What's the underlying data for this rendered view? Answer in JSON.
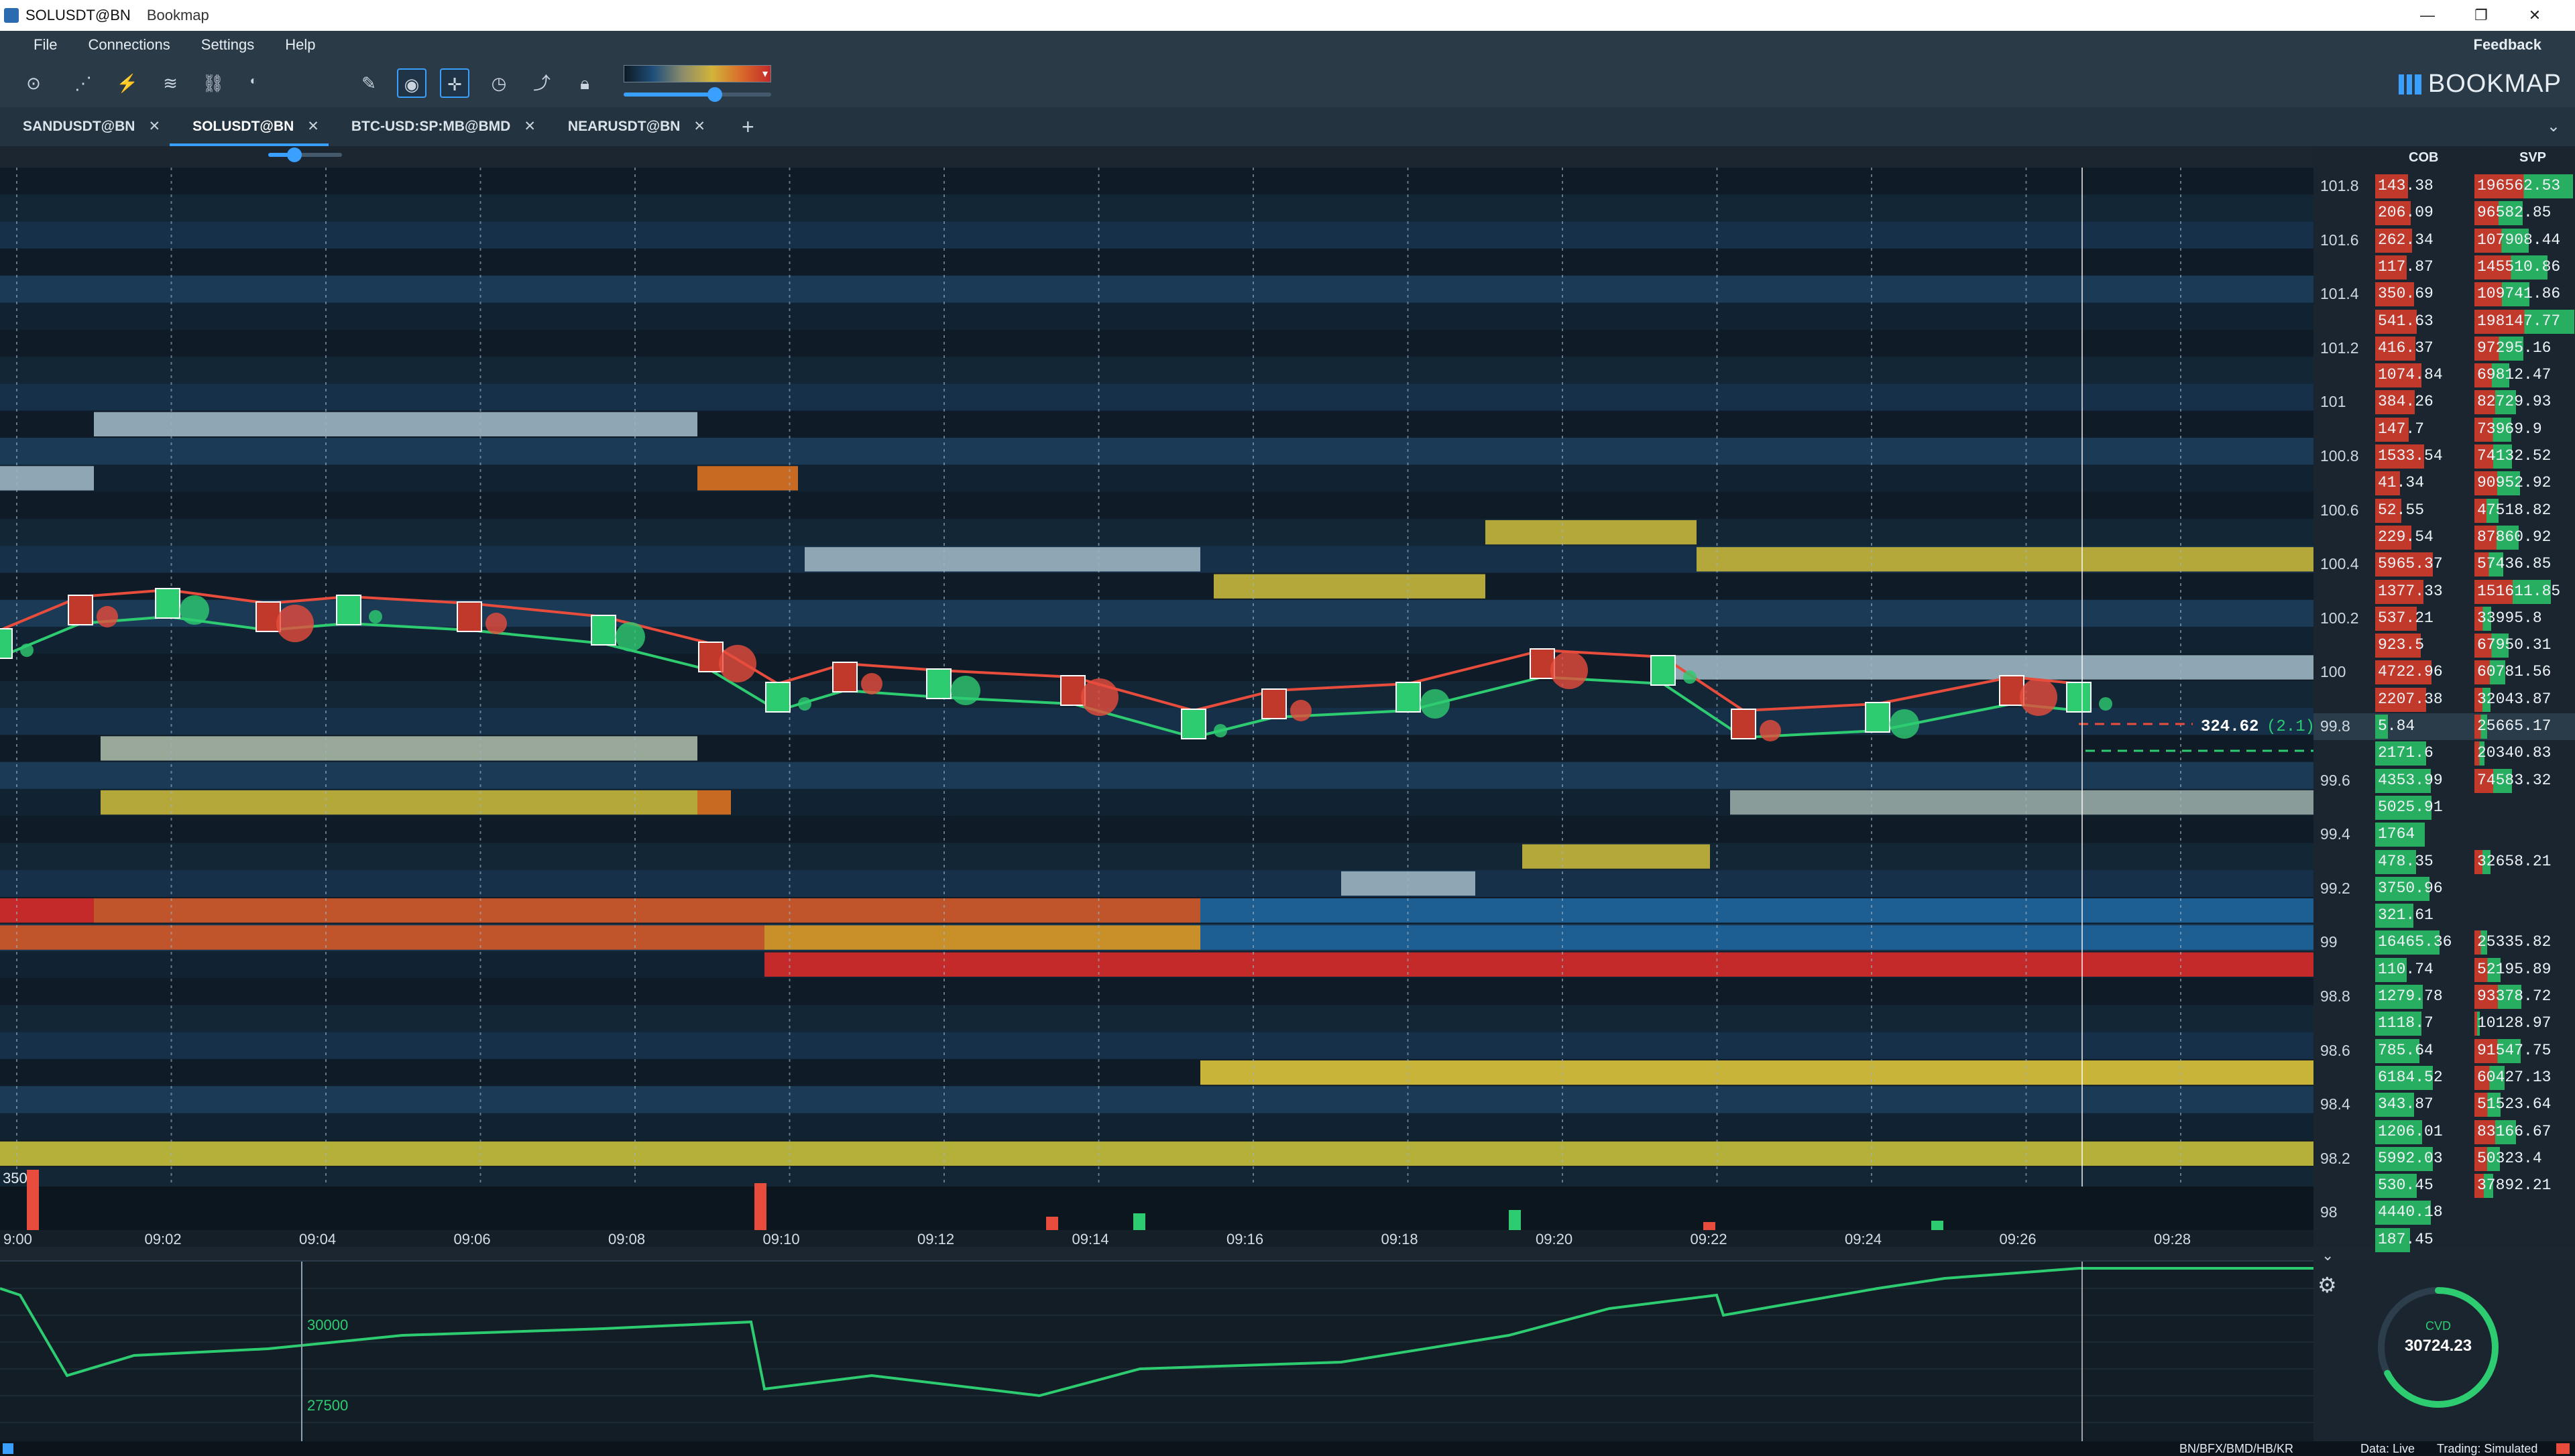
{
  "window": {
    "title": "SOLUSDT@BN",
    "app_name": "Bookmap",
    "controls": [
      "—",
      "❐",
      "✕"
    ]
  },
  "menu": {
    "items": [
      "File",
      "Connections",
      "Settings",
      "Help"
    ],
    "feedback": "Feedback"
  },
  "brand": {
    "name": "BOOKMAP"
  },
  "toolbar": {
    "icons": [
      "camera-icon",
      "share-icon",
      "chart-settings-icon",
      "indicators-icon",
      "link-icon",
      "contrast-icon",
      "pencil-icon",
      "chat-icon",
      "crosshair-icon",
      "timer-icon",
      "chart-line-icon",
      "lock-icon"
    ],
    "slider1_value": 0.45,
    "slider2_value": 0.35,
    "heatmap_slider_value": 0.62
  },
  "tabs": [
    {
      "label": "SANDUSDT@BN",
      "active": false
    },
    {
      "label": "SOLUSDT@BN",
      "active": true
    },
    {
      "label": "BTC-USD:SP:MB@BMD",
      "active": false
    },
    {
      "label": "NEARUSDT@BN",
      "active": false
    }
  ],
  "chart": {
    "last_trade_label": "324.62",
    "last_trade_sub": "(2.1)",
    "volume_max_label": "3500",
    "time_labels": [
      "9:00",
      "09:02",
      "09:04",
      "09:06",
      "09:08",
      "09:10",
      "09:12",
      "09:14",
      "09:16",
      "09:18",
      "09:20",
      "09:22",
      "09:24",
      "09:26",
      "09:28"
    ],
    "cvd_axis_labels": [
      "30000",
      "27500"
    ]
  },
  "columns": {
    "cob": "COB",
    "svp": "SVP"
  },
  "ladder": [
    {
      "price": "101.8",
      "cob": "143.38",
      "svp": "196562.53"
    },
    {
      "price": "",
      "cob": "206.09",
      "svp": "96582.85"
    },
    {
      "price": "101.6",
      "cob": "262.34",
      "svp": "107908.44"
    },
    {
      "price": "",
      "cob": "117.87",
      "svp": "145510.86"
    },
    {
      "price": "101.4",
      "cob": "350.69",
      "svp": "109741.86"
    },
    {
      "price": "",
      "cob": "541.63",
      "svp": "198147.77"
    },
    {
      "price": "101.2",
      "cob": "416.37",
      "svp": "97295.16"
    },
    {
      "price": "",
      "cob": "1074.84",
      "svp": "69812.47"
    },
    {
      "price": "101",
      "cob": "384.26",
      "svp": "82729.93"
    },
    {
      "price": "",
      "cob": "147.7",
      "svp": "73969.9"
    },
    {
      "price": "100.8",
      "cob": "1533.54",
      "svp": "74132.52"
    },
    {
      "price": "",
      "cob": "41.34",
      "svp": "90952.92"
    },
    {
      "price": "100.6",
      "cob": "52.55",
      "svp": "47518.82"
    },
    {
      "price": "",
      "cob": "229.54",
      "svp": "87860.92"
    },
    {
      "price": "100.4",
      "cob": "5965.37",
      "svp": "57436.85"
    },
    {
      "price": "",
      "cob": "1377.33",
      "svp": "151611.85"
    },
    {
      "price": "100.2",
      "cob": "537.21",
      "svp": "33995.8"
    },
    {
      "price": "",
      "cob": "923.5",
      "svp": "67950.31"
    },
    {
      "price": "100",
      "cob": "4722.96",
      "svp": "60781.56"
    },
    {
      "price": "",
      "cob": "2207.38",
      "svp": "32043.87"
    },
    {
      "price": "99.8",
      "cob": "5.84",
      "svp": "25665.17"
    },
    {
      "price": "",
      "cob": "2171.6",
      "svp": "20340.83"
    },
    {
      "price": "99.6",
      "cob": "4353.99",
      "svp": "74583.32"
    },
    {
      "price": "",
      "cob": "5025.91",
      "svp": ""
    },
    {
      "price": "99.4",
      "cob": "1764",
      "svp": ""
    },
    {
      "price": "",
      "cob": "478.35",
      "svp": "32658.21"
    },
    {
      "price": "99.2",
      "cob": "3750.96",
      "svp": ""
    },
    {
      "price": "",
      "cob": "321.61",
      "svp": ""
    },
    {
      "price": "99",
      "cob": "16465.36",
      "svp": "25335.82"
    },
    {
      "price": "",
      "cob": "110.74",
      "svp": "52195.89"
    },
    {
      "price": "98.8",
      "cob": "1279.78",
      "svp": "93378.72"
    },
    {
      "price": "",
      "cob": "1118.7",
      "svp": "10128.97"
    },
    {
      "price": "98.6",
      "cob": "785.64",
      "svp": "91547.75"
    },
    {
      "price": "",
      "cob": "6184.52",
      "svp": "60427.13"
    },
    {
      "price": "98.4",
      "cob": "343.87",
      "svp": "51523.64"
    },
    {
      "price": "",
      "cob": "1206.01",
      "svp": "83166.67"
    },
    {
      "price": "98.2",
      "cob": "5992.03",
      "svp": "50323.4"
    },
    {
      "price": "",
      "cob": "530.45",
      "svp": "37892.21"
    },
    {
      "price": "98",
      "cob": "4440.18",
      "svp": ""
    },
    {
      "price": "",
      "cob": "187.45",
      "svp": ""
    }
  ],
  "cvd": {
    "label": "CVD",
    "value": "30724.23"
  },
  "status": {
    "exchanges": "BN/BFX/BMD/HB/KR",
    "data": "Data: Live",
    "trading": "Trading: Simulated"
  },
  "colors": {
    "accent": "#3aa0ff",
    "buy": "#2ecc71",
    "sell": "#e74c3c",
    "heat_high": "#c9b43a",
    "heat_max": "#c42a2a"
  }
}
